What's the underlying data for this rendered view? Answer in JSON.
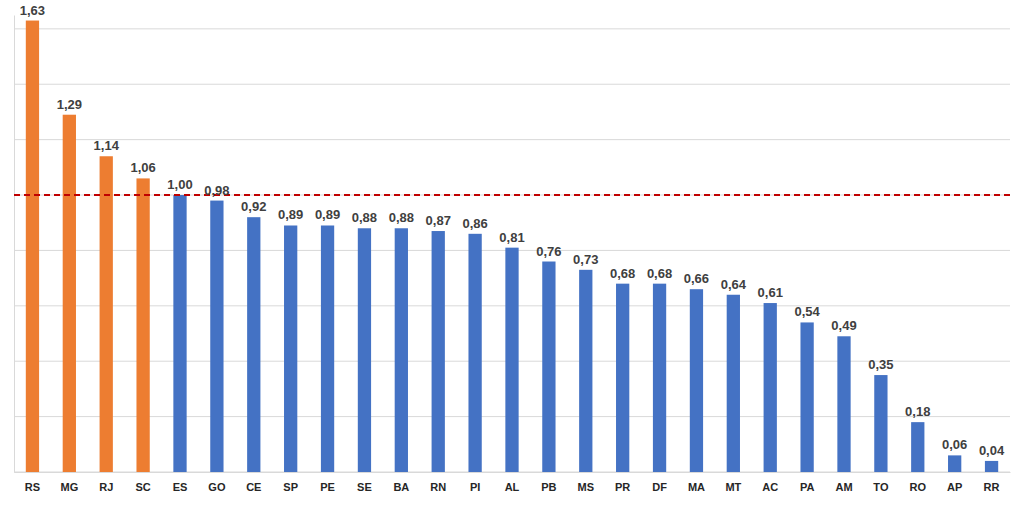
{
  "chart_data": {
    "type": "bar",
    "categories": [
      "RS",
      "MG",
      "RJ",
      "SC",
      "ES",
      "GO",
      "CE",
      "SP",
      "PE",
      "SE",
      "BA",
      "RN",
      "PI",
      "AL",
      "PB",
      "MS",
      "PR",
      "DF",
      "MA",
      "MT",
      "AC",
      "PA",
      "AM",
      "TO",
      "RO",
      "AP",
      "RR"
    ],
    "values": [
      1.63,
      1.29,
      1.14,
      1.06,
      1.0,
      0.98,
      0.92,
      0.89,
      0.89,
      0.88,
      0.88,
      0.87,
      0.86,
      0.81,
      0.76,
      0.73,
      0.68,
      0.68,
      0.66,
      0.64,
      0.61,
      0.54,
      0.49,
      0.35,
      0.18,
      0.06,
      0.04
    ],
    "value_labels": [
      "1,63",
      "1,29",
      "1,14",
      "1,06",
      "1,00",
      "0,98",
      "0,92",
      "0,89",
      "0,89",
      "0,88",
      "0,88",
      "0,87",
      "0,86",
      "0,81",
      "0,76",
      "0,73",
      "0,68",
      "0,68",
      "0,66",
      "0,64",
      "0,61",
      "0,54",
      "0,49",
      "0,35",
      "0,18",
      "0,06",
      "0,04"
    ],
    "colors": [
      "#ed7d31",
      "#ed7d31",
      "#ed7d31",
      "#ed7d31",
      "#4472c4",
      "#4472c4",
      "#4472c4",
      "#4472c4",
      "#4472c4",
      "#4472c4",
      "#4472c4",
      "#4472c4",
      "#4472c4",
      "#4472c4",
      "#4472c4",
      "#4472c4",
      "#4472c4",
      "#4472c4",
      "#4472c4",
      "#4472c4",
      "#4472c4",
      "#4472c4",
      "#4472c4",
      "#4472c4",
      "#4472c4",
      "#4472c4",
      "#4472c4"
    ],
    "reference_line": 1.0,
    "ylim": [
      0,
      1.65
    ],
    "yticks": [
      0,
      0.2,
      0.4,
      0.6,
      0.8,
      1.0,
      1.2,
      1.4,
      1.6
    ],
    "grid": true,
    "data_labels": true,
    "tick_labels": "x"
  }
}
